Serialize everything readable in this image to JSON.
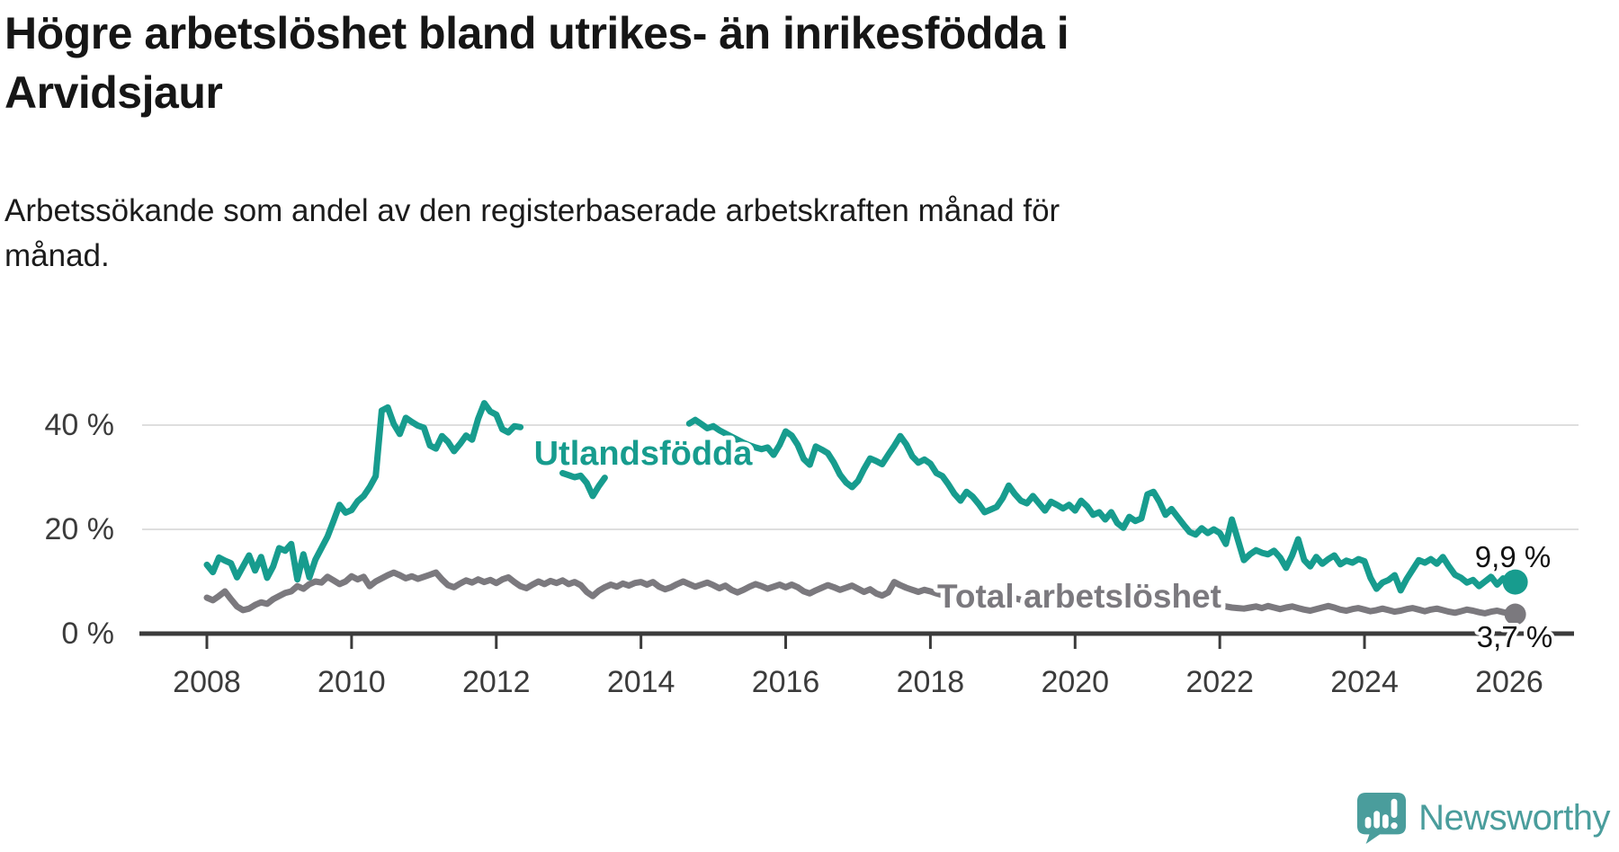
{
  "header": {
    "title_line1": "Högre arbetslöshet bland utrikes- än inrikesfödda i",
    "title_line2": "Arvidsjaur",
    "subtitle_line1": "Arbetssökande som andel av den registerbaserade arbetskraften månad för",
    "subtitle_line2": "månad."
  },
  "logo": {
    "text": "Newsworthy",
    "color": "#4a9d9c",
    "icon": "newsworthy-speech-bubble-bar-chart-icon"
  },
  "chart_data": {
    "type": "line",
    "title": "Högre arbetslöshet bland utrikes- än inrikesfödda i Arvidsjaur",
    "subtitle": "Arbetssökande som andel av den registerbaserade arbetskraften månad för månad.",
    "x_unit": "months",
    "x_start_year": 2008,
    "x_step_months": 1,
    "xlim": [
      2007.5,
      2026.6
    ],
    "ylim": [
      0,
      46
    ],
    "grid": "horizontal",
    "x_ticks": [
      2008,
      2010,
      2012,
      2014,
      2016,
      2018,
      2020,
      2022,
      2024,
      2026
    ],
    "y_ticks": [
      {
        "value": 0,
        "label": "0 %"
      },
      {
        "value": 20,
        "label": "20 %"
      },
      {
        "value": 40,
        "label": "40 %"
      }
    ],
    "colors": {
      "accent_teal": "#179c8e",
      "neutral_gray": "#7b797e",
      "axis": "#3b3b3b",
      "gridline": "#dedede"
    },
    "series": [
      {
        "name": "Total arbetslöshet",
        "color": "#7b797e",
        "line_width": 7,
        "end_value": 3.7,
        "end_label": "3,7 %",
        "values": [
          6.9,
          6.4,
          7.2,
          8.1,
          6.6,
          5.2,
          4.5,
          4.8,
          5.5,
          6.0,
          5.7,
          6.6,
          7.2,
          7.8,
          8.1,
          9.1,
          8.6,
          9.5,
          10.0,
          9.8,
          10.9,
          10.2,
          9.5,
          10.0,
          11.0,
          10.4,
          10.9,
          9.1,
          10.0,
          10.6,
          11.2,
          11.7,
          11.2,
          10.6,
          11.0,
          10.5,
          10.9,
          11.3,
          11.7,
          10.4,
          9.3,
          8.9,
          9.6,
          10.2,
          9.8,
          10.4,
          9.9,
          10.3,
          9.7,
          10.4,
          10.8,
          9.9,
          9.1,
          8.7,
          9.4,
          10.0,
          9.5,
          10.1,
          9.7,
          10.2,
          9.5,
          9.9,
          9.3,
          8.0,
          7.2,
          8.2,
          8.9,
          9.4,
          9.0,
          9.6,
          9.2,
          9.7,
          9.9,
          9.4,
          9.9,
          9.0,
          8.5,
          8.9,
          9.5,
          10.0,
          9.5,
          9.0,
          9.4,
          9.8,
          9.3,
          8.7,
          9.2,
          8.4,
          7.9,
          8.4,
          9.0,
          9.5,
          9.1,
          8.6,
          9.0,
          9.4,
          8.9,
          9.4,
          8.9,
          8.1,
          7.7,
          8.3,
          8.8,
          9.3,
          8.9,
          8.4,
          8.8,
          9.2,
          8.6,
          8.0,
          8.5,
          7.7,
          7.3,
          7.9,
          9.9,
          9.3,
          8.8,
          8.4,
          8.0,
          8.4,
          8.1,
          7.7,
          7.4,
          7.0,
          6.7,
          7.1,
          7.6,
          7.9,
          7.5,
          7.1,
          7.4,
          7.7,
          7.4,
          7.0,
          6.8,
          6.5,
          6.3,
          6.7,
          7.1,
          7.4,
          7.0,
          6.7,
          7.0,
          7.3,
          7.0,
          6.7,
          6.5,
          6.9,
          7.2,
          7.0,
          6.7,
          6.4,
          6.2,
          6.0,
          6.2,
          6.4,
          6.2,
          6.0,
          5.8,
          5.6,
          5.5,
          5.7,
          5.9,
          5.6,
          5.4,
          5.2,
          5.4,
          5.6,
          5.4,
          5.2,
          5.0,
          4.9,
          4.8,
          5.0,
          5.2,
          4.9,
          5.3,
          5.0,
          4.7,
          5.0,
          5.2,
          4.9,
          4.6,
          4.4,
          4.7,
          5.0,
          5.3,
          5.0,
          4.6,
          4.4,
          4.7,
          4.9,
          4.6,
          4.3,
          4.5,
          4.8,
          4.5,
          4.2,
          4.4,
          4.7,
          4.9,
          4.6,
          4.3,
          4.6,
          4.8,
          4.5,
          4.2,
          4.0,
          4.3,
          4.6,
          4.4,
          4.1,
          3.9,
          4.2,
          4.4,
          4.1,
          3.9,
          3.7
        ]
      },
      {
        "name": "Utlandsfödda",
        "color": "#179c8e",
        "line_width": 7,
        "end_value": 9.9,
        "end_label": "9,9 %",
        "values": [
          13.2,
          11.8,
          14.6,
          14.0,
          13.5,
          10.8,
          12.9,
          15.0,
          12.1,
          14.7,
          10.7,
          12.9,
          16.4,
          15.9,
          17.2,
          10.4,
          15.2,
          10.8,
          14.2,
          16.4,
          18.6,
          21.6,
          24.7,
          23.2,
          23.7,
          25.4,
          26.4,
          28.1,
          30.2,
          42.8,
          43.4,
          40.2,
          38.3,
          41.4,
          40.6,
          39.9,
          39.5,
          36.1,
          35.5,
          37.9,
          36.8,
          35.0,
          36.4,
          38.0,
          37.2,
          41.2,
          44.2,
          42.6,
          42.0,
          39.2,
          38.6,
          39.8,
          39.6,
          null,
          null,
          null,
          null,
          null,
          null,
          30.8,
          30.4,
          30.0,
          30.3,
          28.9,
          26.4,
          28.3,
          29.9,
          null,
          null,
          null,
          null,
          null,
          null,
          null,
          null,
          null,
          null,
          null,
          null,
          null,
          40.3,
          41.0,
          40.2,
          39.4,
          39.8,
          39.0,
          38.4,
          37.8,
          37.2,
          36.6,
          36.1,
          35.7,
          35.4,
          35.7,
          34.3,
          36.2,
          38.8,
          38.0,
          36.2,
          33.5,
          32.4,
          35.9,
          35.3,
          34.6,
          32.8,
          30.5,
          29.0,
          28.1,
          29.3,
          31.6,
          33.6,
          33.1,
          32.5,
          34.3,
          36.0,
          37.9,
          36.3,
          34.0,
          32.8,
          33.4,
          32.6,
          30.8,
          30.2,
          28.6,
          26.8,
          25.5,
          27.2,
          26.3,
          24.9,
          23.3,
          23.8,
          24.3,
          26.0,
          28.4,
          26.8,
          25.5,
          25.0,
          26.4,
          25.0,
          23.6,
          25.3,
          24.7,
          24.0,
          24.7,
          23.6,
          25.5,
          24.4,
          22.8,
          23.3,
          21.9,
          23.3,
          21.2,
          20.3,
          22.4,
          21.6,
          22.1,
          26.7,
          27.2,
          25.3,
          22.8,
          23.9,
          22.4,
          20.9,
          19.5,
          19.0,
          20.2,
          19.3,
          20.0,
          19.3,
          17.2,
          21.9,
          18.0,
          14.1,
          15.2,
          16.0,
          15.5,
          15.2,
          15.9,
          14.6,
          12.6,
          15.0,
          18.1,
          14.1,
          12.9,
          14.7,
          13.4,
          14.3,
          15.0,
          13.3,
          14.0,
          13.6,
          14.3,
          13.9,
          10.7,
          8.6,
          9.8,
          10.3,
          11.2,
          8.3,
          10.5,
          12.3,
          14.1,
          13.6,
          14.3,
          13.4,
          14.7,
          12.9,
          11.3,
          10.7,
          9.8,
          10.3,
          9.1,
          10.0,
          10.9,
          9.4,
          10.6,
          10.2,
          9.9
        ]
      }
    ],
    "annotations": {
      "series_label_utlandsfodda": "Utlandsfödda",
      "series_label_total": "Total arbetslöshet",
      "end_label_utlandsfodda": "9,9 %",
      "end_label_total": "3,7 %"
    }
  }
}
